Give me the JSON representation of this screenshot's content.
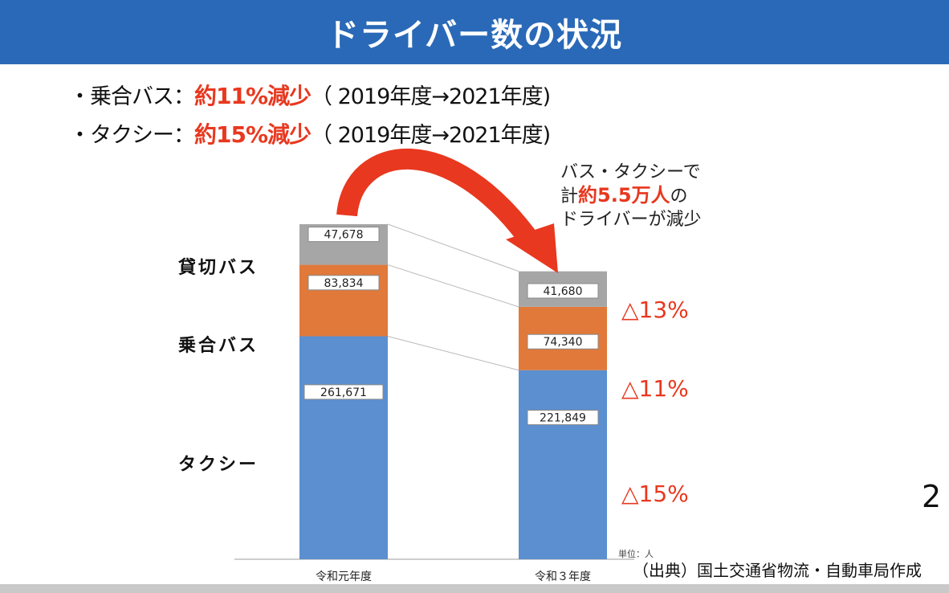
{
  "header": {
    "title": "ドライバー数の状況"
  },
  "bullets": [
    {
      "prefix": "・乗合バス：",
      "highlight": "約11%減少",
      "suffix": "（ 2019年度→2021年度)"
    },
    {
      "prefix": "・タクシー：",
      "highlight": "約15%減少",
      "suffix": "（ 2019年度→2021年度)"
    }
  ],
  "callout": {
    "line1": "バス・タクシーで",
    "line2_pre": "計",
    "line2_hl": "約5.5万人",
    "line2_post": "の",
    "line3": "ドライバーが減少"
  },
  "page_number": "2",
  "source": "（出典）国土交通省物流・自動車局作成",
  "colors": {
    "header_bg": "#2a69b7",
    "highlight": "#e8381f",
    "taxi": "#5b8fd0",
    "route_bus": "#e0793a",
    "charter_bus": "#a6a6a6",
    "arrow": "#e8381f"
  },
  "chart_data": {
    "type": "bar",
    "stacked": true,
    "categories": [
      "令和元年度",
      "令和３年度"
    ],
    "series": [
      {
        "name": "タクシー",
        "values": [
          261671,
          221849
        ],
        "labels": [
          "261,671",
          "221,849"
        ]
      },
      {
        "name": "乗合バス",
        "values": [
          83834,
          74340
        ],
        "labels": [
          "83,834",
          "74,340"
        ]
      },
      {
        "name": "貸切バス",
        "values": [
          47678,
          41680
        ],
        "labels": [
          "47,678",
          "41,680"
        ]
      }
    ],
    "change_labels": [
      "△15%",
      "△11%",
      "△13%"
    ],
    "unit_label": "単位：人",
    "legend_placement": "left"
  }
}
